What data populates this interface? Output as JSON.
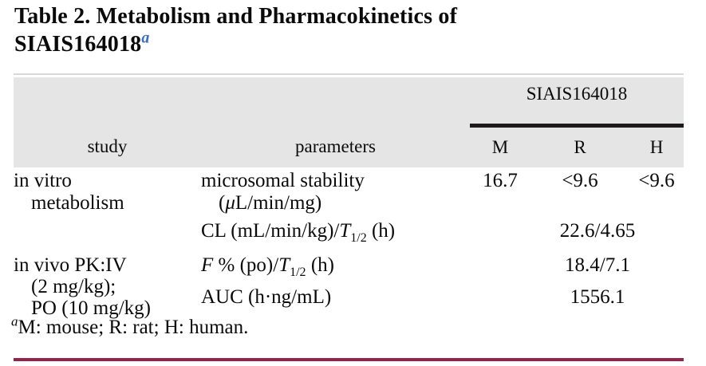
{
  "title": {
    "line1": "Table 2. Metabolism and Pharmacokinetics of",
    "line2": "SIAIS164018",
    "footnote_marker": "a"
  },
  "header": {
    "spanner": "SIAIS164018",
    "col_study": "study",
    "col_parameters": "parameters",
    "col_m": "M",
    "col_r": "R",
    "col_h": "H"
  },
  "rows": {
    "in_vitro": {
      "study_line1": "in vitro",
      "study_line2": "metabolism",
      "param_line1": "microsomal stability",
      "param_line2_pre": "(",
      "param_line2_mu": "μ",
      "param_line2_post": "L/min/mg)",
      "m": "16.7",
      "r": "<9.6",
      "h": "<9.6"
    },
    "cl": {
      "param_pre": "CL (mL/min/kg)/",
      "param_t": "T",
      "param_t_sub": "1/2",
      "param_post": " (h)",
      "value": "22.6/4.65"
    },
    "in_vivo": {
      "study_line1": "in vivo PK:IV",
      "study_line2": "(2 mg/kg);",
      "study_line3": "PO (10 mg/kg)",
      "param1_f": "F",
      "param1_mid": " % (po)/",
      "param1_t": "T",
      "param1_t_sub": "1/2",
      "param1_post": " (h)",
      "value1": "18.4/7.1",
      "param2": "AUC (h·ng/mL)",
      "value2": "1556.1"
    }
  },
  "footnote": {
    "marker": "a",
    "text": "M: mouse; R: rat; H: human."
  },
  "colors": {
    "header-bg": "#e6e5e6",
    "spanner-rule": "#1e1a1c",
    "bottom-rule": "#942449",
    "title-marker-blue": "#3a6cc8",
    "hairline": "#d9d9d9"
  }
}
